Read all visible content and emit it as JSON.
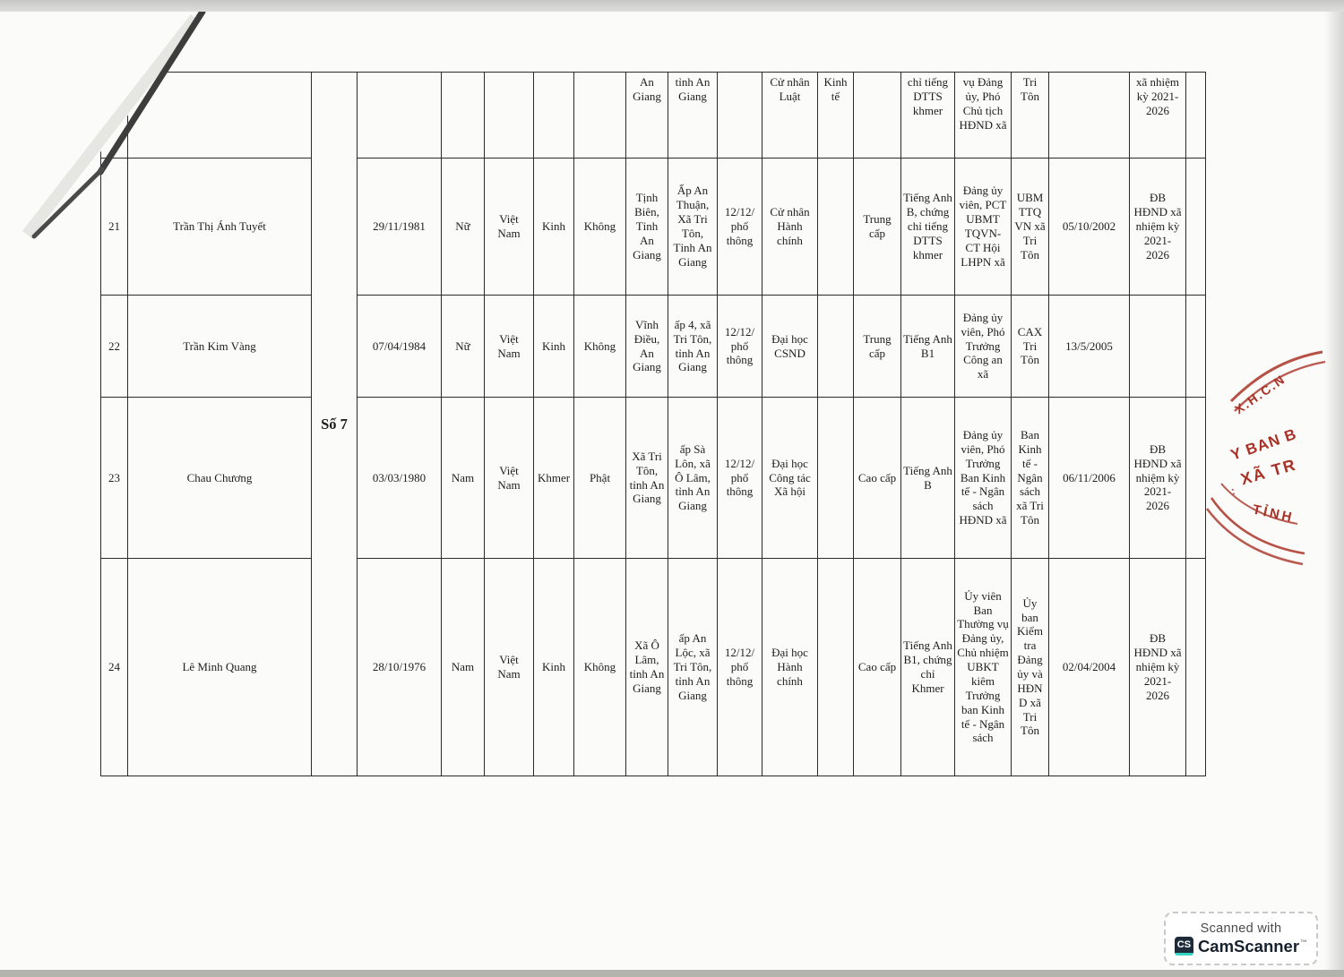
{
  "table": {
    "unit_label": "Số 7",
    "columns": [
      "stt",
      "name",
      "unit",
      "dob",
      "gender",
      "nationality",
      "ethnicity",
      "religion",
      "hometown",
      "residence",
      "education",
      "degree",
      "major",
      "politics",
      "language",
      "position",
      "workplace",
      "party_date",
      "delegate",
      "note"
    ],
    "rows": [
      {
        "partial": true,
        "cells": {
          "hometown": "An Giang",
          "residence": "tỉnh An Giang",
          "degree": "Cử nhân Luật",
          "major": "Kinh tế",
          "language": "chỉ tiếng DTTS khmer",
          "position": "vụ Đảng ủy, Phó Chủ tịch HĐND xã",
          "workplace": "Tri Tôn",
          "delegate": "xã nhiệm kỳ 2021- 2026"
        }
      },
      {
        "cells": {
          "stt": "21",
          "name": "Trần Thị Ánh Tuyết",
          "dob": "29/11/1981",
          "gender": "Nữ",
          "nationality": "Việt Nam",
          "ethnicity": "Kinh",
          "religion": "Không",
          "hometown": "Tịnh Biên, Tỉnh An Giang",
          "residence": "Ấp An Thuận, Xã Tri Tôn, Tỉnh An Giang",
          "education": "12/12/ phổ thông",
          "degree": "Cử nhân Hành chính",
          "politics": "Trung cấp",
          "language": "Tiếng Anh B, chứng chỉ tiếng DTTS khmer",
          "position": "Đảng ủy viên, PCT UBMT TQVN- CT Hội LHPN xã",
          "workplace": "UBM TTQ VN xã Tri Tôn",
          "party_date": "05/10/2002",
          "delegate": "ĐB HĐND xã nhiệm kỳ 2021- 2026"
        }
      },
      {
        "cells": {
          "stt": "22",
          "name": "Trần Kim Vàng",
          "dob": "07/04/1984",
          "gender": "Nữ",
          "nationality": "Việt Nam",
          "ethnicity": "Kinh",
          "religion": "Không",
          "hometown": "Vĩnh Điều, An Giang",
          "residence": "ấp 4, xã Tri Tôn, tỉnh An Giang",
          "education": "12/12/ phổ thông",
          "degree": "Đại học CSND",
          "politics": "Trung cấp",
          "language": "Tiếng Anh B1",
          "position": "Đảng ủy viên, Phó Trưởng Công an xã",
          "workplace": "CAX Tri Tôn",
          "party_date": "13/5/2005"
        }
      },
      {
        "cells": {
          "stt": "23",
          "name": "Chau Chương",
          "dob": "03/03/1980",
          "gender": "Nam",
          "nationality": "Việt Nam",
          "ethnicity": "Khmer",
          "religion": "Phật",
          "hometown": "Xã Tri Tôn, tỉnh An Giang",
          "residence": "ấp Sà Lôn, xã Ô Lâm, tỉnh An Giang",
          "education": "12/12/ phổ thông",
          "degree": "Đại học Công tác Xã hội",
          "politics": "Cao cấp",
          "language": "Tiếng Anh B",
          "position": "Đảng ủy viên, Phó Trưởng Ban Kinh tế - Ngân sách HĐND xã",
          "workplace": "Ban Kinh tế - Ngân sách xã Tri Tôn",
          "party_date": "06/11/2006",
          "delegate": "ĐB HĐND xã nhiệm kỳ 2021- 2026"
        }
      },
      {
        "cells": {
          "stt": "24",
          "name": "Lê Minh Quang",
          "dob": "28/10/1976",
          "gender": "Nam",
          "nationality": "Việt Nam",
          "ethnicity": "Kinh",
          "religion": "Không",
          "hometown": "Xã Ô Lâm, tỉnh An Giang",
          "residence": "ấp An Lộc, xã Tri Tôn, tỉnh An Giang",
          "education": "12/12/ phổ thông",
          "degree": "Đại học Hành chính",
          "politics": "Cao cấp",
          "language": "Tiếng Anh B1, chứng chỉ Khmer",
          "position": "Ủy viên Ban Thường vụ Đảng ủy, Chủ nhiệm UBKT kiêm Trưởng ban Kinh tế - Ngân sách",
          "workplace": "Ủy ban Kiểm tra Đảng ủy và HĐND xã Tri Tôn",
          "party_date": "02/04/2004",
          "delegate": "ĐB HĐND xã nhiệm kỳ 2021- 2026"
        }
      }
    ]
  },
  "stamp": {
    "color": "#a93226",
    "arc_top_label": "X.H.C.N",
    "mid_line1": "Y BAN B",
    "mid_line2": "XÃ TR",
    "arc_bottom_label": "TỈNH"
  },
  "badge": {
    "line1": "Scanned with",
    "logo": "CS",
    "name": "CamScanner",
    "tm": "™"
  }
}
